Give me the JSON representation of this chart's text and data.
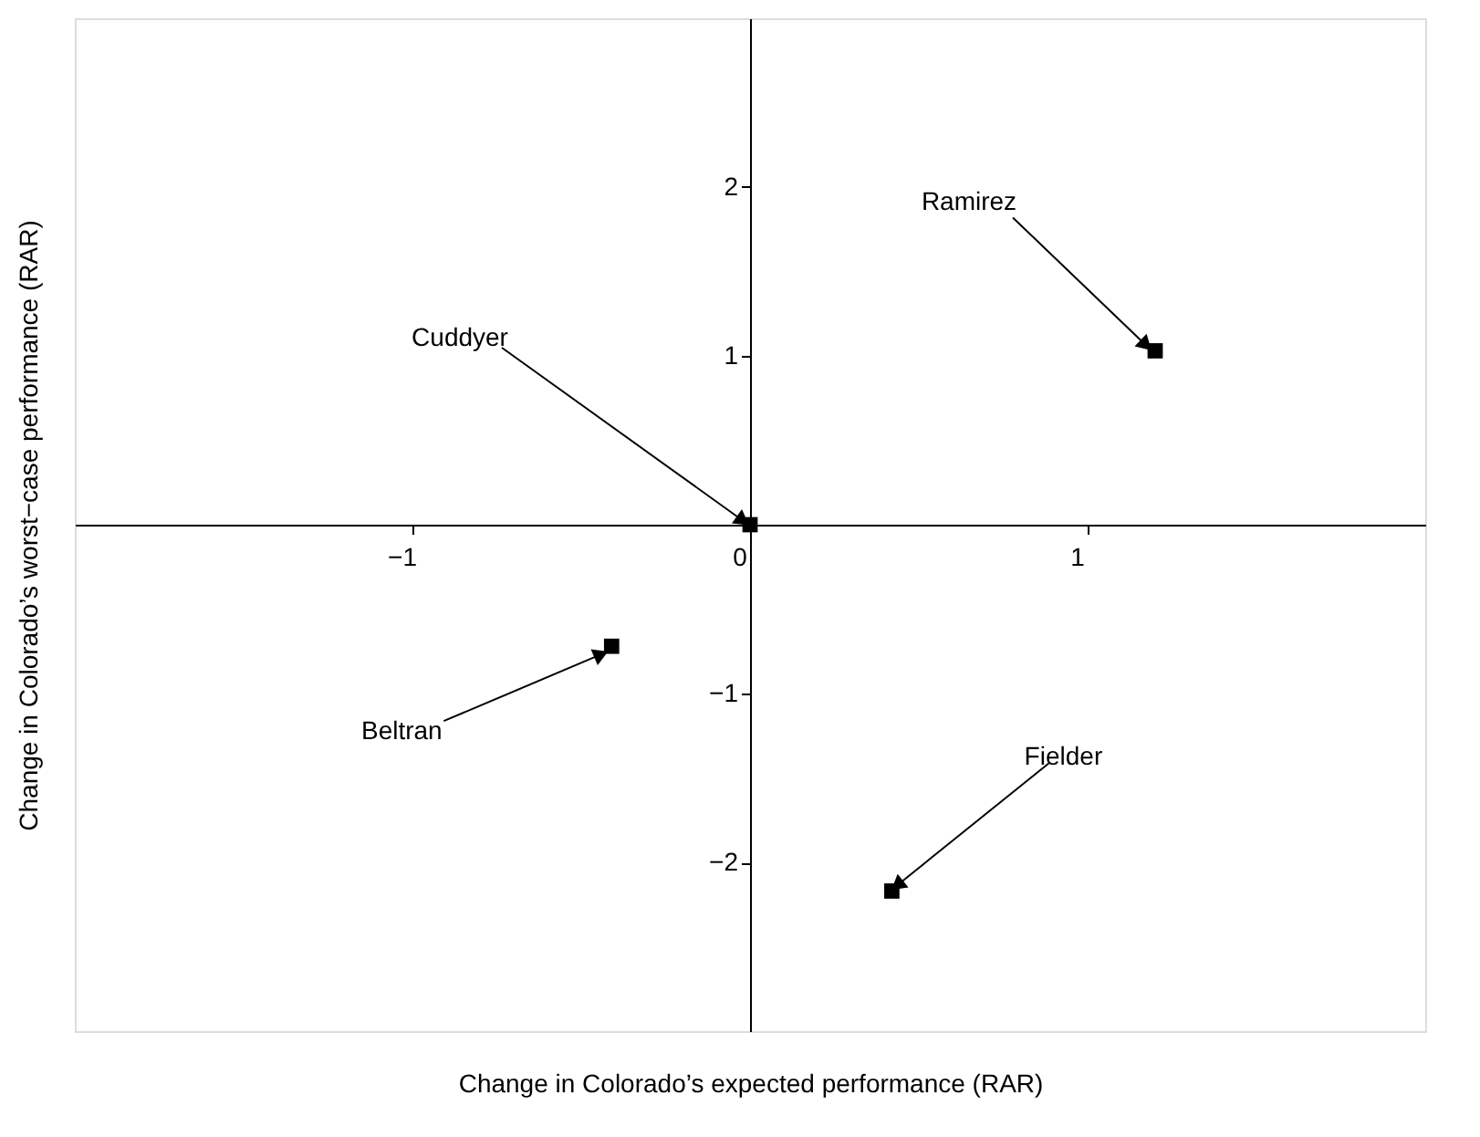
{
  "chart_data": {
    "type": "scatter",
    "xlabel": "Change in Colorado’s expected performance (RAR)",
    "ylabel": "Change in Colorado’s worst−case performance (RAR)",
    "x": [
      1.2,
      0,
      -0.41,
      0.42
    ],
    "series": [
      {
        "color": "#000000",
        "values": [
          1.03,
          0,
          -0.72,
          -2.17
        ]
      }
    ],
    "marker": "square",
    "grid": false,
    "xlim": [
      -2,
      2
    ],
    "ylim": [
      -3,
      3
    ],
    "xticks": [
      -1,
      0,
      1
    ],
    "yticks": [
      -2,
      -1,
      1,
      2
    ],
    "annotations": [
      {
        "text": "Ramirez",
        "x": 1.2,
        "y": 1.03
      },
      {
        "text": "Cuddyer",
        "x": 0,
        "y": 0
      },
      {
        "text": "Beltran",
        "x": -0.41,
        "y": -0.72
      },
      {
        "text": "Fielder",
        "x": 0.42,
        "y": -2.17
      }
    ]
  }
}
